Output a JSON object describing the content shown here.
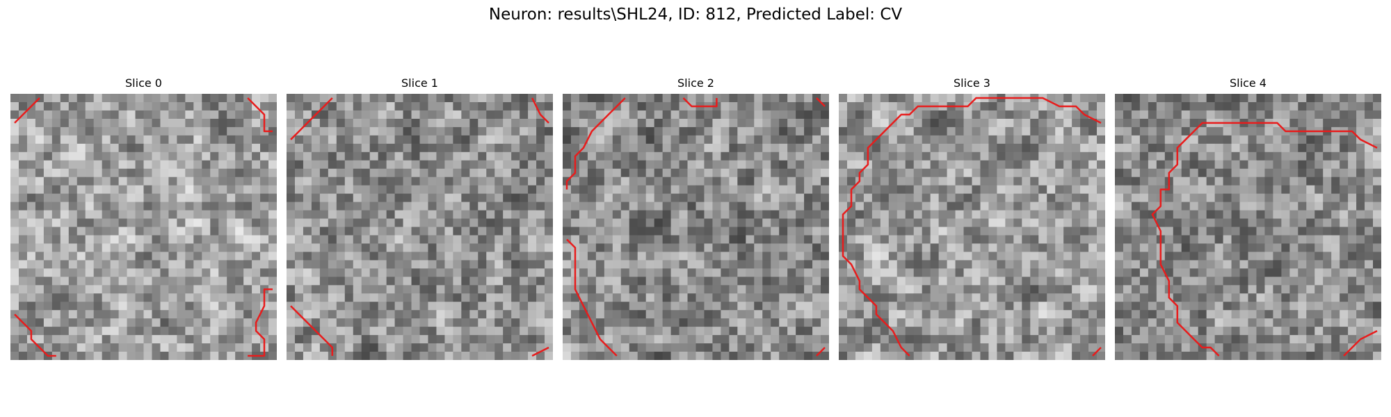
{
  "figure": {
    "title": "Neuron: results\\SHL24, ID: 812, Predicted Label: CV"
  },
  "colors": {
    "contour": "#e81c1c",
    "background": "#ffffff"
  },
  "panels": [
    {
      "title": "Slice 0",
      "seed": 11,
      "mean": 0.62,
      "contours": [
        [
          [
            0,
            3
          ],
          [
            3,
            0
          ]
        ],
        [
          [
            28,
            0
          ],
          [
            30,
            2
          ],
          [
            30,
            4
          ],
          [
            31,
            4
          ]
        ],
        [
          [
            0,
            26
          ],
          [
            2,
            28
          ],
          [
            2,
            29
          ],
          [
            4,
            31
          ],
          [
            5,
            31
          ]
        ],
        [
          [
            31,
            23
          ],
          [
            30,
            23
          ],
          [
            30,
            25
          ],
          [
            29,
            27
          ],
          [
            29,
            28
          ],
          [
            30,
            29
          ],
          [
            30,
            31
          ],
          [
            28,
            31
          ]
        ]
      ]
    },
    {
      "title": "Slice 1",
      "seed": 23,
      "mean": 0.57,
      "contours": [
        [
          [
            0,
            5
          ],
          [
            1,
            4
          ],
          [
            2,
            3
          ],
          [
            3,
            2
          ],
          [
            4,
            1
          ],
          [
            5,
            0
          ]
        ],
        [
          [
            29,
            0
          ],
          [
            30,
            2
          ],
          [
            31,
            3
          ]
        ],
        [
          [
            0,
            25
          ],
          [
            1,
            26
          ],
          [
            2,
            27
          ],
          [
            5,
            30
          ],
          [
            5,
            31
          ]
        ],
        [
          [
            29,
            31
          ],
          [
            31,
            30
          ]
        ]
      ]
    },
    {
      "title": "Slice 2",
      "seed": 37,
      "mean": 0.54,
      "contours": [
        [
          [
            0,
            11
          ],
          [
            0,
            10
          ],
          [
            1,
            9
          ],
          [
            1,
            7
          ],
          [
            2,
            6
          ],
          [
            3,
            4
          ],
          [
            4,
            3
          ],
          [
            5,
            2
          ],
          [
            6,
            1
          ],
          [
            7,
            0
          ]
        ],
        [
          [
            14,
            0
          ],
          [
            15,
            1
          ],
          [
            18,
            1
          ],
          [
            18,
            0
          ]
        ],
        [
          [
            30,
            0
          ],
          [
            31,
            1
          ]
        ],
        [
          [
            0,
            17
          ],
          [
            1,
            18
          ],
          [
            1,
            23
          ],
          [
            2,
            25
          ],
          [
            3,
            27
          ],
          [
            4,
            29
          ],
          [
            5,
            30
          ],
          [
            6,
            31
          ]
        ],
        [
          [
            30,
            31
          ],
          [
            31,
            30
          ]
        ]
      ]
    },
    {
      "title": "Slice 3",
      "seed": 41,
      "mean": 0.6,
      "contours": [
        [
          [
            31,
            3
          ],
          [
            29,
            2
          ],
          [
            28,
            1
          ],
          [
            26,
            1
          ],
          [
            24,
            0
          ],
          [
            22,
            0
          ],
          [
            16,
            0
          ],
          [
            15,
            1
          ],
          [
            9,
            1
          ],
          [
            8,
            2
          ],
          [
            7,
            2
          ],
          [
            5,
            4
          ],
          [
            4,
            5
          ],
          [
            3,
            6
          ],
          [
            3,
            8
          ],
          [
            2,
            9
          ],
          [
            2,
            10
          ],
          [
            1,
            11
          ],
          [
            1,
            13
          ],
          [
            0,
            14
          ],
          [
            0,
            19
          ],
          [
            1,
            20
          ],
          [
            2,
            22
          ],
          [
            2,
            23
          ],
          [
            3,
            24
          ],
          [
            4,
            25
          ],
          [
            4,
            26
          ],
          [
            5,
            27
          ],
          [
            6,
            28
          ],
          [
            7,
            30
          ],
          [
            8,
            31
          ]
        ],
        [
          [
            31,
            30
          ],
          [
            30,
            31
          ]
        ]
      ]
    },
    {
      "title": "Slice 4",
      "seed": 53,
      "mean": 0.55,
      "contours": [
        [
          [
            31,
            6
          ],
          [
            29,
            5
          ],
          [
            28,
            4
          ],
          [
            20,
            4
          ],
          [
            19,
            3
          ],
          [
            10,
            3
          ],
          [
            9,
            4
          ],
          [
            8,
            5
          ],
          [
            7,
            6
          ],
          [
            7,
            8
          ],
          [
            6,
            9
          ],
          [
            6,
            11
          ],
          [
            5,
            11
          ],
          [
            5,
            13
          ],
          [
            4,
            14
          ],
          [
            5,
            16
          ],
          [
            5,
            20
          ],
          [
            6,
            22
          ],
          [
            6,
            24
          ],
          [
            7,
            25
          ],
          [
            7,
            27
          ],
          [
            9,
            29
          ],
          [
            10,
            30
          ],
          [
            11,
            30
          ],
          [
            12,
            31
          ]
        ],
        [
          [
            27,
            31
          ],
          [
            29,
            29
          ],
          [
            31,
            28
          ]
        ]
      ]
    }
  ]
}
